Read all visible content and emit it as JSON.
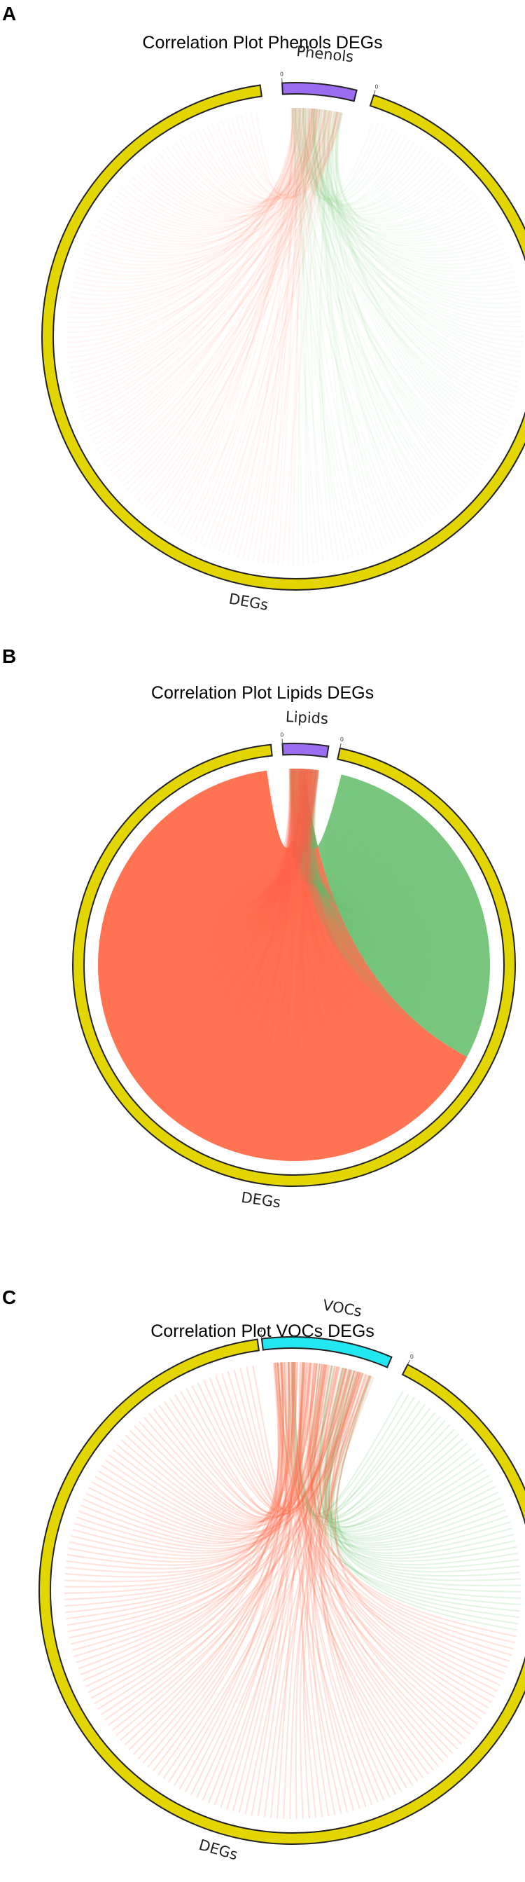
{
  "figure": {
    "panels": [
      {
        "letter": "A",
        "title": "Correlation Plot Phenols DEGs",
        "metabolite_segment": {
          "label": "Phenols",
          "color": "#9B6CF0"
        },
        "deg_segment": {
          "label": "DEGs",
          "color": "#E2D500"
        },
        "tick_labels": [
          "0",
          "0"
        ],
        "correlation_colors": {
          "positive": "#FF6B4A",
          "negative": "#6CC070"
        }
      },
      {
        "letter": "B",
        "title": "Correlation Plot Lipids DEGs",
        "metabolite_segment": {
          "label": "Lipids",
          "color": "#9B6CF0"
        },
        "deg_segment": {
          "label": "DEGs",
          "color": "#E2D500"
        },
        "tick_labels": [
          "0",
          "0"
        ],
        "correlation_colors": {
          "positive": "#FF6B4A",
          "negative": "#6CC070"
        }
      },
      {
        "letter": "C",
        "title": "Correlation Plot VOCs DEGs",
        "metabolite_segment": {
          "label": "VOCs",
          "color": "#22E6F0"
        },
        "deg_segment": {
          "label": "DEGs",
          "color": "#E2D500"
        },
        "tick_labels": [
          "0",
          "0"
        ],
        "correlation_colors": {
          "positive": "#FF6B4A",
          "negative": "#6CC070"
        }
      }
    ]
  }
}
